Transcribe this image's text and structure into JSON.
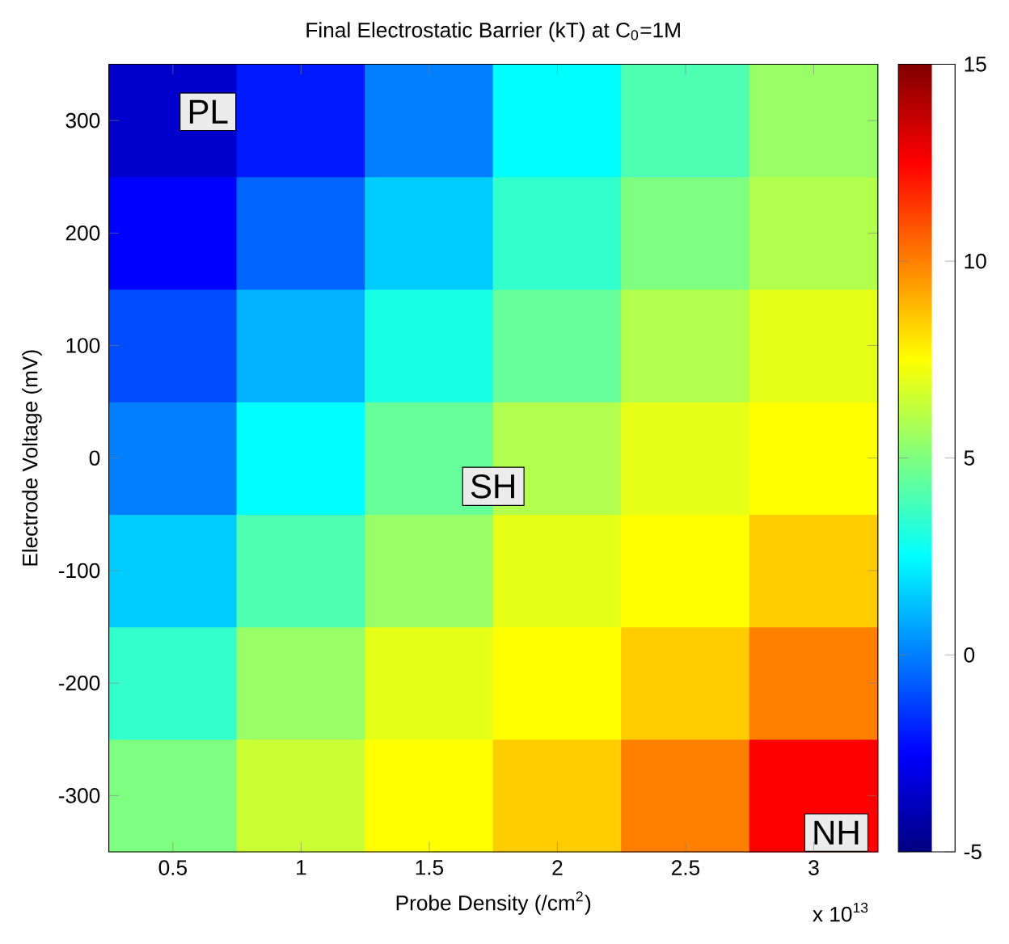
{
  "chart_data": {
    "type": "heatmap",
    "title": "Final Electrostatic Barrier (kT) at C$_{0}$=1M",
    "xlabel": "Probe Density (/cm$^{2}$)",
    "ylabel": "Electrode Voltage (mV)",
    "categories": [
      "0.5",
      "1",
      "1.5",
      "2",
      "2.5",
      "3"
    ],
    "y_categories": [
      "300",
      "200",
      "100",
      "0",
      "-100",
      "-200",
      "-300"
    ],
    "cells": [
      [
        -3.5,
        -2,
        0,
        2.5,
        4,
        5.5
      ],
      [
        -2.5,
        -0.5,
        1.5,
        3.5,
        5,
        6
      ],
      [
        -1,
        1,
        3,
        4.5,
        6,
        7
      ],
      [
        0,
        2.5,
        4.5,
        6,
        7,
        7.5
      ],
      [
        1.5,
        4,
        5.5,
        7,
        7.5,
        8.5
      ],
      [
        3.5,
        5.5,
        7,
        7.5,
        8.5,
        10
      ],
      [
        5,
        6.5,
        7.5,
        8.5,
        10,
        12.5
      ]
    ],
    "clim": [
      -5,
      15
    ],
    "cticks": [
      -5,
      0,
      5,
      10,
      15
    ],
    "annotations": [
      "PL",
      "SH",
      "NH",
      "x 10$^{13}$"
    ]
  }
}
